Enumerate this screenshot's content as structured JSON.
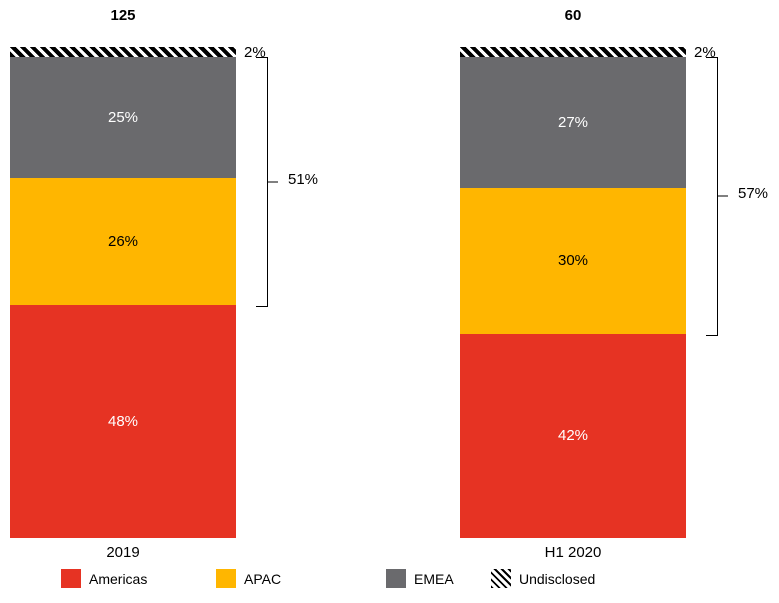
{
  "chart_data": {
    "type": "bar",
    "subtype": "100-percent-stacked-column",
    "title": "",
    "unit": "%",
    "categories": [
      "2019",
      "H1 2020"
    ],
    "totals": [
      "125",
      "60"
    ],
    "stack_order_top_to_bottom": [
      "Undisclosed",
      "EMEA",
      "APAC",
      "Americas"
    ],
    "series": [
      {
        "name": "Americas",
        "color": "#E63323",
        "label_color": "#FFFFFF",
        "values": [
          48,
          42
        ]
      },
      {
        "name": "APAC",
        "color": "#FFB600",
        "label_color": "#000000",
        "values": [
          26,
          30
        ]
      },
      {
        "name": "EMEA",
        "color": "#6A6A6D",
        "label_color": "#FFFFFF",
        "values": [
          25,
          27
        ]
      },
      {
        "name": "Undisclosed",
        "pattern": "diagonal-hatch",
        "color": "#000000",
        "label_outside": true,
        "values": [
          2,
          2
        ]
      }
    ],
    "brackets": [
      {
        "bar_index": 0,
        "spans": [
          "EMEA",
          "APAC"
        ],
        "label": "51%"
      },
      {
        "bar_index": 1,
        "spans": [
          "EMEA",
          "APAC"
        ],
        "label": "57%"
      }
    ],
    "legend_position": "bottom",
    "grid": false
  },
  "legend": {
    "items": [
      {
        "label": "Americas",
        "swatch": "#E63323"
      },
      {
        "label": "APAC",
        "swatch": "#FFB600"
      },
      {
        "label": "EMEA",
        "swatch": "#6A6A6D"
      },
      {
        "label": "Undisclosed",
        "swatch": "diagonal-hatch"
      }
    ]
  }
}
